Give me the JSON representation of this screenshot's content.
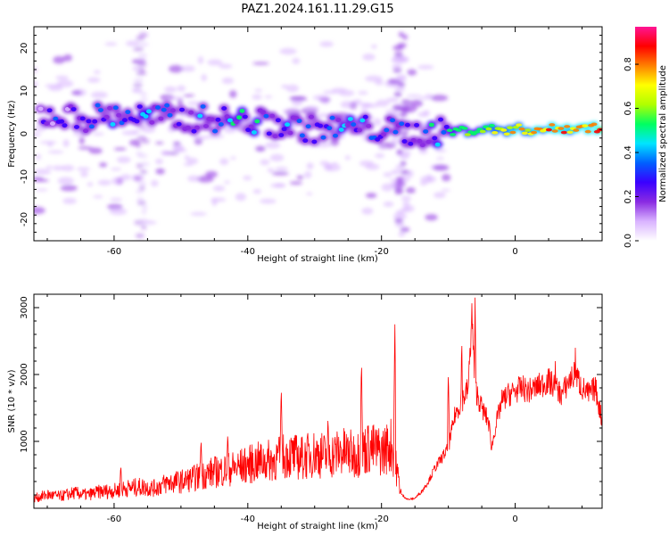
{
  "title": "PAZ1.2024.161.11.29.G15",
  "colors": {
    "snr_line": "#ff0000",
    "background": "#ffffff",
    "colormap": [
      "#ffffff",
      "#d9b3ff",
      "#8a2be2",
      "#3a00ff",
      "#0060ff",
      "#00e5ff",
      "#00ff60",
      "#b0ff00",
      "#ffff00",
      "#ff8000",
      "#ff0000",
      "#ff1493"
    ]
  },
  "chart_data": [
    {
      "type": "heatmap",
      "xlabel": "Height of straight line (km)",
      "ylabel": "Frequency (Hz)",
      "xlim": [
        -72,
        13
      ],
      "ylim": [
        -25,
        25
      ],
      "xticks": [
        -60,
        -40,
        -20,
        0
      ],
      "yticks": [
        -20,
        -10,
        0,
        10,
        20
      ],
      "colorbar": {
        "label": "Normalized spectral amplitude",
        "range": [
          0,
          0.97
        ],
        "ticks": [
          "0.0",
          "0.2",
          "0.4",
          "0.6",
          "0.8"
        ]
      },
      "ridge": {
        "x": [
          -70,
          -65,
          -60,
          -55,
          -50,
          -45,
          -40,
          -35,
          -30,
          -25,
          -20,
          -15,
          -10,
          -5,
          0,
          5,
          10,
          13
        ],
        "freq": [
          4.5,
          3.5,
          4.5,
          4,
          3.5,
          3.5,
          3,
          2,
          1,
          1.5,
          1,
          0,
          0.5,
          1,
          1,
          1,
          1.5,
          1.5
        ],
        "amplitude": [
          0.25,
          0.3,
          0.35,
          0.35,
          0.35,
          0.4,
          0.45,
          0.4,
          0.3,
          0.4,
          0.3,
          0.3,
          0.55,
          0.6,
          0.75,
          0.8,
          0.85,
          0.9
        ]
      }
    },
    {
      "type": "line",
      "xlabel": "Height of straight line (km)",
      "ylabel": "SNR (10 * v/v)",
      "xlim": [
        -72,
        13
      ],
      "ylim": [
        0,
        3200
      ],
      "xticks": [
        -60,
        -40,
        -20,
        0
      ],
      "yticks": [
        1000,
        2000,
        3000
      ],
      "series": [
        {
          "x": [
            -72,
            -70,
            -68,
            -66,
            -64,
            -62,
            -60,
            -58,
            -56,
            -54,
            -52,
            -50,
            -48,
            -46,
            -44,
            -42,
            -40,
            -38,
            -36,
            -34,
            -32,
            -30,
            -28,
            -26,
            -24,
            -22,
            -20,
            -18.5,
            -17,
            -16,
            -15,
            -14,
            -13,
            -12,
            -11,
            -10,
            -9,
            -8,
            -7,
            -6.5,
            -6,
            -5,
            -4,
            -3.5,
            -3,
            -2,
            -1,
            0,
            1,
            2,
            3,
            4,
            5,
            6,
            7,
            8,
            9,
            10,
            11,
            12,
            13
          ],
          "y": [
            150,
            200,
            180,
            230,
            200,
            250,
            260,
            300,
            320,
            300,
            380,
            400,
            450,
            520,
            560,
            600,
            650,
            700,
            720,
            800,
            750,
            820,
            780,
            850,
            800,
            900,
            850,
            950,
            200,
            130,
            150,
            250,
            400,
            600,
            750,
            900,
            1400,
            1600,
            1800,
            2900,
            1800,
            1500,
            1300,
            900,
            1200,
            1600,
            1700,
            1750,
            1800,
            1750,
            1800,
            1850,
            1900,
            1800,
            1700,
            1900,
            2000,
            1800,
            1700,
            1800,
            1300
          ],
          "spikes": [
            {
              "x": -59,
              "y": 650
            },
            {
              "x": -47,
              "y": 1050
            },
            {
              "x": -43,
              "y": 1150
            },
            {
              "x": -35,
              "y": 1850
            },
            {
              "x": -28,
              "y": 1400
            },
            {
              "x": -23,
              "y": 2250
            },
            {
              "x": -18,
              "y": 2750
            },
            {
              "x": -10,
              "y": 2100
            },
            {
              "x": -8,
              "y": 2600
            },
            {
              "x": -6,
              "y": 3150
            },
            {
              "x": 6,
              "y": 2200
            },
            {
              "x": 9,
              "y": 2400
            }
          ]
        }
      ]
    }
  ]
}
